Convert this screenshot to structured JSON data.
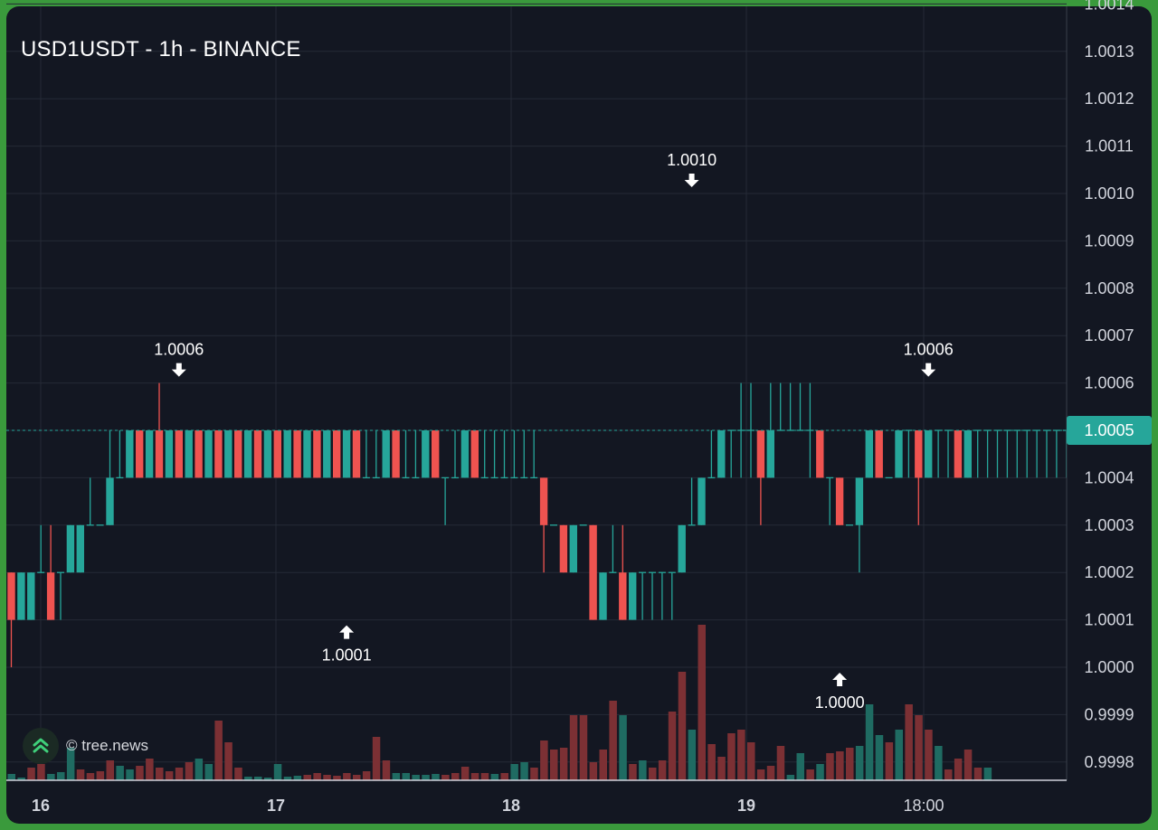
{
  "window": {
    "title": "USD1USDT - 1h - BINANCE"
  },
  "watermark": {
    "text": "© tree.news",
    "logo_icon": "tree-news-logo-icon"
  },
  "colors": {
    "background": "#131722",
    "border": "#3a9a3c",
    "up": "#26a69a",
    "down": "#ef5350",
    "volume_up": "#1f6b62",
    "volume_down": "#7c3034",
    "grid": "#252a36",
    "text": "#ffffff",
    "axis_text": "#d1d4dc",
    "last_price": "#26a69a"
  },
  "chart_data": {
    "type": "candlestick",
    "title": "USD1USDT - 1h - BINANCE",
    "symbol": "USD1USDT",
    "interval": "1h",
    "exchange": "BINANCE",
    "y_ticks": [
      "1.0014",
      "1.0013",
      "1.0012",
      "1.0011",
      "1.0010",
      "1.0009",
      "1.0008",
      "1.0007",
      "1.0006",
      "1.0005",
      "1.0004",
      "1.0003",
      "1.0002",
      "1.0001",
      "1.0000",
      "0.9999",
      "0.9998"
    ],
    "ylim": [
      0.99976,
      1.00144
    ],
    "x_ticks": [
      "16",
      "17",
      "18",
      "19",
      "18:00"
    ],
    "last_price": {
      "label": "1.0005",
      "value": 1.0005
    },
    "annotations": [
      {
        "label": "1.0006",
        "type": "high",
        "value": 1.0006,
        "bar": 17
      },
      {
        "label": "1.0001",
        "type": "low",
        "value": 1.0001,
        "bar": 34
      },
      {
        "label": "1.0010",
        "type": "high",
        "value": 1.001,
        "bar": 69
      },
      {
        "label": "1.0000",
        "type": "low",
        "value": 1.0,
        "bar": 84
      },
      {
        "label": "1.0006",
        "type": "high",
        "value": 1.0006,
        "bar": 93
      }
    ],
    "candles": [
      [
        2,
        1,
        2,
        0
      ],
      [
        1,
        2,
        2,
        1
      ],
      [
        1,
        2,
        2,
        1
      ],
      [
        2,
        2,
        3,
        2
      ],
      [
        2,
        1,
        3,
        1
      ],
      [
        2,
        2,
        2,
        1
      ],
      [
        2,
        3,
        3,
        2
      ],
      [
        2,
        3,
        3,
        2
      ],
      [
        3,
        3,
        4,
        3
      ],
      [
        3,
        3,
        3,
        3
      ],
      [
        3,
        4,
        5,
        3
      ],
      [
        4,
        4,
        5,
        4
      ],
      [
        4,
        5,
        5,
        4
      ],
      [
        5,
        4,
        5,
        4
      ],
      [
        4,
        5,
        5,
        4
      ],
      [
        5,
        4,
        6,
        4
      ],
      [
        4,
        5,
        5,
        4
      ],
      [
        5,
        4,
        5,
        4
      ],
      [
        4,
        5,
        5,
        4
      ],
      [
        5,
        4,
        5,
        4
      ],
      [
        4,
        5,
        5,
        4
      ],
      [
        5,
        4,
        5,
        4
      ],
      [
        4,
        5,
        5,
        4
      ],
      [
        5,
        4,
        5,
        4
      ],
      [
        4,
        5,
        5,
        4
      ],
      [
        5,
        4,
        5,
        4
      ],
      [
        4,
        5,
        5,
        4
      ],
      [
        5,
        4,
        5,
        4
      ],
      [
        4,
        5,
        5,
        4
      ],
      [
        5,
        4,
        5,
        4
      ],
      [
        4,
        5,
        5,
        4
      ],
      [
        5,
        4,
        5,
        4
      ],
      [
        4,
        5,
        5,
        4
      ],
      [
        5,
        4,
        5,
        4
      ],
      [
        4,
        5,
        5,
        4
      ],
      [
        5,
        4,
        5,
        4
      ],
      [
        4,
        4,
        5,
        4
      ],
      [
        4,
        4,
        5,
        4
      ],
      [
        4,
        5,
        5,
        4
      ],
      [
        5,
        4,
        5,
        4
      ],
      [
        4,
        4,
        5,
        4
      ],
      [
        4,
        4,
        5,
        4
      ],
      [
        4,
        5,
        5,
        4
      ],
      [
        5,
        4,
        5,
        4
      ],
      [
        4,
        4,
        4,
        3
      ],
      [
        4,
        4,
        5,
        4
      ],
      [
        4,
        5,
        5,
        4
      ],
      [
        5,
        4,
        5,
        4
      ],
      [
        4,
        4,
        5,
        4
      ],
      [
        4,
        4,
        5,
        4
      ],
      [
        4,
        4,
        5,
        4
      ],
      [
        4,
        4,
        5,
        4
      ],
      [
        4,
        4,
        5,
        4
      ],
      [
        4,
        4,
        5,
        4
      ],
      [
        4,
        3,
        4,
        2
      ],
      [
        3,
        3,
        3,
        3
      ],
      [
        3,
        2,
        3,
        2
      ],
      [
        2,
        3,
        3,
        2
      ],
      [
        3,
        3,
        3,
        3
      ],
      [
        3,
        1,
        3,
        1
      ],
      [
        1,
        2,
        2,
        1
      ],
      [
        2,
        2,
        3,
        2
      ],
      [
        2,
        1,
        3,
        1
      ],
      [
        1,
        2,
        2,
        1
      ],
      [
        2,
        2,
        2,
        1
      ],
      [
        2,
        2,
        2,
        1
      ],
      [
        2,
        2,
        2,
        1
      ],
      [
        2,
        2,
        2,
        1
      ],
      [
        2,
        3,
        3,
        2
      ],
      [
        3,
        3,
        4,
        3
      ],
      [
        3,
        4,
        4,
        3
      ],
      [
        4,
        4,
        5,
        4
      ],
      [
        4,
        5,
        5,
        4
      ],
      [
        5,
        5,
        5,
        4
      ],
      [
        5,
        5,
        6,
        4
      ],
      [
        5,
        5,
        6,
        4
      ],
      [
        5,
        4,
        5,
        3
      ],
      [
        4,
        5,
        6,
        4
      ],
      [
        5,
        5,
        6,
        5
      ],
      [
        5,
        5,
        6,
        5
      ],
      [
        5,
        5,
        6,
        5
      ],
      [
        5,
        5,
        6,
        4
      ],
      [
        5,
        4,
        5,
        4
      ],
      [
        4,
        4,
        4,
        3
      ],
      [
        4,
        3,
        4,
        3
      ],
      [
        3,
        3,
        3,
        3
      ],
      [
        3,
        4,
        4,
        2
      ],
      [
        4,
        5,
        5,
        4
      ],
      [
        5,
        4,
        5,
        4
      ],
      [
        4,
        4,
        4,
        4
      ],
      [
        4,
        5,
        5,
        4
      ],
      [
        5,
        5,
        5,
        4
      ],
      [
        5,
        4,
        5,
        3
      ],
      [
        4,
        5,
        5,
        4
      ],
      [
        5,
        5,
        5,
        4
      ],
      [
        5,
        5,
        5,
        4
      ],
      [
        5,
        4,
        5,
        4
      ],
      [
        4,
        5,
        5,
        4
      ],
      [
        5,
        5,
        5,
        4
      ],
      [
        5,
        5,
        5,
        4
      ],
      [
        5,
        5,
        5,
        4
      ],
      [
        5,
        5,
        5,
        4
      ],
      [
        5,
        5,
        5,
        4
      ],
      [
        5,
        5,
        5,
        4
      ],
      [
        5,
        5,
        5,
        4
      ],
      [
        5,
        5,
        5,
        4
      ],
      [
        5,
        5,
        5,
        4
      ],
      [
        5,
        5,
        5,
        4
      ]
    ],
    "volume": [
      [
        7,
        1
      ],
      [
        3,
        1
      ],
      [
        14,
        -1
      ],
      [
        18,
        -1
      ],
      [
        7,
        1
      ],
      [
        9,
        1
      ],
      [
        36,
        1
      ],
      [
        12,
        -1
      ],
      [
        8,
        -1
      ],
      [
        10,
        -1
      ],
      [
        22,
        -1
      ],
      [
        16,
        1
      ],
      [
        12,
        1
      ],
      [
        16,
        -1
      ],
      [
        24,
        -1
      ],
      [
        14,
        -1
      ],
      [
        10,
        -1
      ],
      [
        14,
        -1
      ],
      [
        20,
        -1
      ],
      [
        24,
        1
      ],
      [
        18,
        1
      ],
      [
        66,
        -1
      ],
      [
        42,
        -1
      ],
      [
        14,
        -1
      ],
      [
        4,
        1
      ],
      [
        4,
        1
      ],
      [
        3,
        1
      ],
      [
        18,
        1
      ],
      [
        4,
        1
      ],
      [
        5,
        1
      ],
      [
        6,
        -1
      ],
      [
        8,
        -1
      ],
      [
        6,
        -1
      ],
      [
        5,
        -1
      ],
      [
        8,
        -1
      ],
      [
        6,
        -1
      ],
      [
        10,
        -1
      ],
      [
        48,
        -1
      ],
      [
        22,
        -1
      ],
      [
        8,
        1
      ],
      [
        8,
        1
      ],
      [
        6,
        1
      ],
      [
        6,
        1
      ],
      [
        7,
        1
      ],
      [
        6,
        -1
      ],
      [
        8,
        -1
      ],
      [
        15,
        -1
      ],
      [
        8,
        -1
      ],
      [
        8,
        -1
      ],
      [
        7,
        1
      ],
      [
        8,
        -1
      ],
      [
        18,
        1
      ],
      [
        20,
        1
      ],
      [
        14,
        -1
      ],
      [
        44,
        -1
      ],
      [
        34,
        -1
      ],
      [
        36,
        -1
      ],
      [
        72,
        -1
      ],
      [
        72,
        -1
      ],
      [
        20,
        -1
      ],
      [
        34,
        -1
      ],
      [
        88,
        -1
      ],
      [
        72,
        1
      ],
      [
        18,
        -1
      ],
      [
        22,
        1
      ],
      [
        14,
        -1
      ],
      [
        22,
        -1
      ],
      [
        76,
        -1
      ],
      [
        120,
        -1
      ],
      [
        56,
        1
      ],
      [
        172,
        -1
      ],
      [
        40,
        -1
      ],
      [
        26,
        -1
      ],
      [
        52,
        -1
      ],
      [
        56,
        -1
      ],
      [
        42,
        -1
      ],
      [
        12,
        -1
      ],
      [
        16,
        -1
      ],
      [
        38,
        -1
      ],
      [
        6,
        1
      ],
      [
        30,
        1
      ],
      [
        12,
        -1
      ],
      [
        18,
        1
      ],
      [
        30,
        -1
      ],
      [
        32,
        -1
      ],
      [
        36,
        -1
      ],
      [
        38,
        1
      ],
      [
        84,
        1
      ],
      [
        50,
        1
      ],
      [
        42,
        -1
      ],
      [
        56,
        1
      ],
      [
        84,
        -1
      ],
      [
        72,
        -1
      ],
      [
        56,
        -1
      ],
      [
        38,
        1
      ],
      [
        12,
        -1
      ],
      [
        24,
        -1
      ],
      [
        34,
        -1
      ],
      [
        14,
        -1
      ],
      [
        14,
        1
      ]
    ]
  }
}
